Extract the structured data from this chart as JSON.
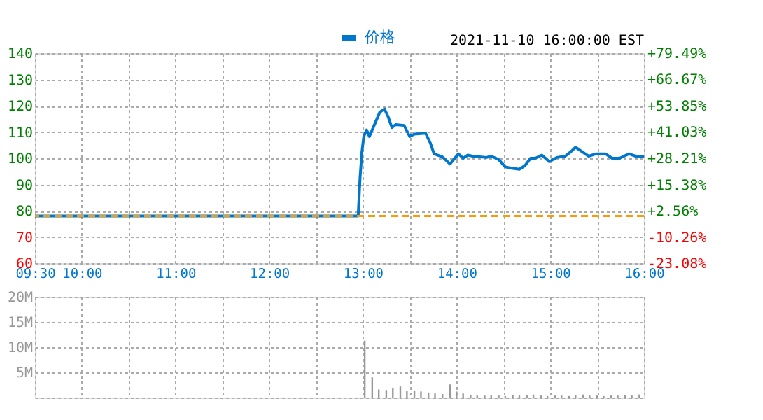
{
  "chart_data": [
    {
      "type": "line",
      "annotations": [
        "2021-11-10 16:00:00 EST"
      ],
      "legend": "top",
      "grid": true,
      "line_style": "solid",
      "marker": "none",
      "xlim": [
        9.5,
        16
      ],
      "xticks": [
        {
          "value": 9.5,
          "label": "09:30"
        },
        {
          "value": 10,
          "label": "10:00"
        },
        {
          "value": 10.5,
          "label": null
        },
        {
          "value": 11,
          "label": "11:00"
        },
        {
          "value": 11.5,
          "label": null
        },
        {
          "value": 12,
          "label": "12:00"
        },
        {
          "value": 12.5,
          "label": null
        },
        {
          "value": 13,
          "label": "13:00"
        },
        {
          "value": 13.5,
          "label": null
        },
        {
          "value": 14,
          "label": "14:00"
        },
        {
          "value": 14.5,
          "label": null
        },
        {
          "value": 15,
          "label": "15:00"
        },
        {
          "value": 15.5,
          "label": null
        },
        {
          "value": 16,
          "label": "16:00"
        }
      ],
      "ylim": [
        60,
        140
      ],
      "yticks": [
        60,
        70,
        80,
        90,
        100,
        110,
        120,
        130,
        140
      ],
      "y2lim": [
        -23.08,
        79.49
      ],
      "y2ticks": [
        {
          "value": -23.08,
          "label": "-23.08%"
        },
        {
          "value": -10.26,
          "label": "-10.26%"
        },
        {
          "value": 2.56,
          "label": "+2.56%"
        },
        {
          "value": 15.38,
          "label": "+15.38%"
        },
        {
          "value": 28.21,
          "label": "+28.21%"
        },
        {
          "value": 41.03,
          "label": "+41.03%"
        },
        {
          "value": 53.85,
          "label": "+53.85%"
        },
        {
          "value": 66.67,
          "label": "+66.67%"
        },
        {
          "value": 79.49,
          "label": "+79.49%"
        }
      ],
      "ref_lines": [
        {
          "axis": "y",
          "value": 78,
          "color": "#ff9900",
          "line_style": "dashed"
        }
      ],
      "series": [
        {
          "name": "价格",
          "color": "#0077cc",
          "x": [
            9.5,
            12.95,
            12.97,
            12.99,
            13.01,
            13.04,
            13.07,
            13.13,
            13.18,
            13.23,
            13.27,
            13.31,
            13.35,
            13.44,
            13.5,
            13.55,
            13.67,
            13.72,
            13.76,
            13.85,
            13.93,
            14.02,
            14.07,
            14.12,
            14.17,
            14.32,
            14.37,
            14.45,
            14.52,
            14.59,
            14.67,
            14.73,
            14.79,
            14.84,
            14.91,
            14.99,
            15.07,
            15.16,
            15.22,
            15.27,
            15.34,
            15.41,
            15.49,
            15.59,
            15.66,
            15.74,
            15.84,
            15.91,
            16
          ],
          "values": [
            78,
            78,
            92.6,
            102.4,
            108.3,
            110.8,
            108.3,
            113.3,
            117.5,
            118.8,
            115.8,
            111.7,
            112.8,
            112.5,
            108.3,
            109.2,
            109.5,
            105.8,
            101.7,
            100.5,
            97.8,
            101.7,
            100,
            101.2,
            100.8,
            100.3,
            100.8,
            99.5,
            96.7,
            96.2,
            95.8,
            97.2,
            100,
            100,
            101.2,
            98.7,
            100.3,
            100.8,
            102.5,
            104.2,
            102.5,
            100.8,
            101.7,
            101.7,
            100,
            100,
            101.7,
            100.8,
            100.8
          ]
        }
      ]
    },
    {
      "type": "bar",
      "grid": true,
      "tick_labels": "y",
      "xlim": [
        9.5,
        16
      ],
      "xticks": [
        9.5,
        10,
        10.5,
        11,
        11.5,
        12,
        12.5,
        13,
        13.5,
        14,
        14.5,
        15,
        15.5,
        16
      ],
      "ylim": [
        0,
        20
      ],
      "yticks": [
        {
          "value": 0,
          "label": null
        },
        {
          "value": 5,
          "label": "5M"
        },
        {
          "value": 10,
          "label": "10M"
        },
        {
          "value": 15,
          "label": "15M"
        },
        {
          "value": 20,
          "label": "20M"
        }
      ],
      "series": [
        {
          "color": "#999999",
          "x": [
            13.02,
            13.1,
            13.17,
            13.25,
            13.32,
            13.4,
            13.47,
            13.55,
            13.62,
            13.7,
            13.77,
            13.85,
            13.93,
            14.0,
            14.07,
            14.15,
            14.22,
            14.3,
            14.37,
            14.45,
            14.52,
            14.6,
            14.67,
            14.75,
            14.82,
            14.9,
            14.97,
            15.05,
            15.12,
            15.2,
            15.27,
            15.35,
            15.42,
            15.5,
            15.57,
            15.65,
            15.72,
            15.8,
            15.87,
            15.95
          ],
          "values": [
            11.3,
            4.0,
            1.6,
            1.5,
            1.9,
            2.2,
            1.3,
            1.4,
            1.2,
            1.0,
            0.8,
            0.7,
            2.6,
            1.2,
            0.8,
            0.5,
            0.4,
            0.4,
            0.4,
            0.4,
            0.3,
            0.5,
            0.4,
            0.5,
            0.6,
            0.4,
            0.3,
            0.4,
            0.4,
            0.3,
            0.5,
            0.6,
            0.4,
            0.4,
            0.3,
            0.4,
            0.4,
            0.5,
            0.4,
            0.6
          ]
        }
      ]
    }
  ]
}
